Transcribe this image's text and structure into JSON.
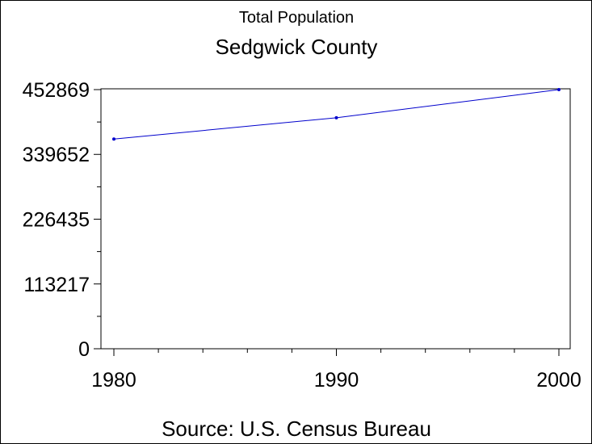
{
  "chart_data": {
    "type": "line",
    "title": "Sedgwick County",
    "subtitle": "Total Population",
    "source": "Source: U.S. Census Bureau",
    "xlabel": "",
    "ylabel": "",
    "x": [
      1980,
      1990,
      2000
    ],
    "series": [
      {
        "values": [
          366500,
          403662,
          452869
        ],
        "color": "#0000cc"
      }
    ],
    "x_ticks": [
      "1980",
      "1990",
      "2000"
    ],
    "y_ticks": [
      "0",
      "113217",
      "226435",
      "339652",
      "452869"
    ],
    "y_tick_values": [
      0,
      113217,
      226435,
      339652,
      452869
    ],
    "xlim": [
      1980,
      2000
    ],
    "ylim": [
      0,
      452869
    ],
    "grid": false,
    "legend": "none"
  }
}
